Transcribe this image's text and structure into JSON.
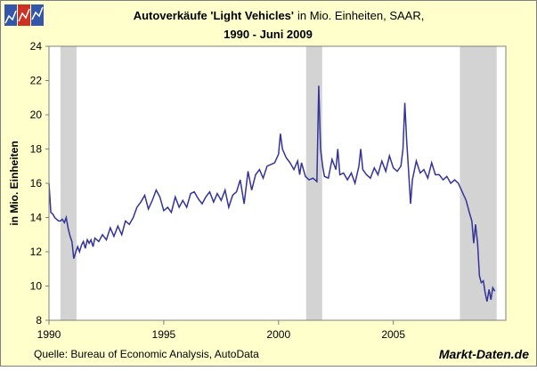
{
  "chart_data": {
    "type": "line",
    "title": "Autoverkäufe 'Light Vehicles'",
    "title_suffix": "in Mio. Einheiten, SAAR,",
    "subtitle": "1990 - Juni 2009",
    "y_label": "in Mio. Einheiten",
    "source": "Quelle: Bureau of Economic Analysis, AutoData",
    "brand": "Markt-Daten.de",
    "xlim": [
      1990,
      2009.9
    ],
    "xticks": [
      1990,
      1995,
      2000,
      2005
    ],
    "ylim": [
      8,
      24
    ],
    "yticks": [
      8,
      10,
      12,
      14,
      16,
      18,
      20,
      22,
      24
    ],
    "grid": false,
    "recessions": [
      [
        1990.5,
        1991.2
      ],
      [
        2001.2,
        2001.9
      ],
      [
        2007.9,
        2009.5
      ]
    ],
    "recession_color": "#d3d3d3",
    "x": [
      1990.0,
      1990.08,
      1990.17,
      1990.25,
      1990.33,
      1990.42,
      1990.5,
      1990.58,
      1990.67,
      1990.75,
      1990.83,
      1990.92,
      1991.0,
      1991.08,
      1991.17,
      1991.25,
      1991.33,
      1991.42,
      1991.5,
      1991.58,
      1991.67,
      1991.75,
      1991.83,
      1991.92,
      1992.0,
      1992.17,
      1992.33,
      1992.5,
      1992.67,
      1992.83,
      1993.0,
      1993.17,
      1993.33,
      1993.5,
      1993.67,
      1993.83,
      1994.0,
      1994.17,
      1994.33,
      1994.5,
      1994.67,
      1994.83,
      1995.0,
      1995.17,
      1995.33,
      1995.5,
      1995.67,
      1995.83,
      1996.0,
      1996.17,
      1996.33,
      1996.5,
      1996.67,
      1996.83,
      1997.0,
      1997.17,
      1997.33,
      1997.5,
      1997.67,
      1997.83,
      1998.0,
      1998.17,
      1998.33,
      1998.5,
      1998.67,
      1998.83,
      1999.0,
      1999.17,
      1999.33,
      1999.5,
      1999.67,
      1999.83,
      2000.0,
      2000.08,
      2000.17,
      2000.33,
      2000.5,
      2000.67,
      2000.83,
      2000.92,
      2001.0,
      2001.17,
      2001.33,
      2001.5,
      2001.67,
      2001.75,
      2001.83,
      2001.92,
      2002.0,
      2002.17,
      2002.33,
      2002.5,
      2002.58,
      2002.67,
      2002.83,
      2003.0,
      2003.17,
      2003.33,
      2003.5,
      2003.58,
      2003.67,
      2003.83,
      2004.0,
      2004.17,
      2004.33,
      2004.5,
      2004.67,
      2004.83,
      2005.0,
      2005.17,
      2005.33,
      2005.42,
      2005.5,
      2005.58,
      2005.67,
      2005.75,
      2005.83,
      2006.0,
      2006.17,
      2006.33,
      2006.5,
      2006.67,
      2006.83,
      2007.0,
      2007.17,
      2007.33,
      2007.5,
      2007.67,
      2007.83,
      2008.0,
      2008.17,
      2008.33,
      2008.42,
      2008.5,
      2008.58,
      2008.67,
      2008.75,
      2008.83,
      2008.92,
      2009.0,
      2009.08,
      2009.17,
      2009.25,
      2009.33,
      2009.42
    ],
    "series": [
      {
        "name": "Light Vehicles",
        "color": "#333399",
        "values": [
          16.0,
          14.3,
          14.2,
          14.0,
          13.9,
          13.8,
          13.8,
          13.9,
          13.7,
          14.0,
          13.4,
          12.9,
          12.6,
          11.6,
          12.0,
          12.3,
          12.0,
          12.4,
          12.6,
          12.2,
          12.7,
          12.5,
          12.7,
          12.3,
          12.8,
          12.6,
          13.0,
          12.7,
          13.4,
          12.9,
          13.5,
          13.0,
          13.8,
          13.6,
          14.0,
          14.6,
          14.9,
          15.3,
          14.5,
          15.0,
          15.6,
          15.2,
          14.4,
          14.6,
          14.3,
          15.2,
          14.6,
          15.0,
          14.6,
          15.4,
          15.5,
          15.1,
          14.8,
          15.2,
          15.5,
          14.9,
          15.4,
          15.0,
          15.6,
          14.6,
          15.3,
          15.5,
          16.2,
          14.8,
          16.7,
          15.6,
          16.5,
          16.8,
          16.3,
          17.0,
          17.1,
          17.2,
          17.7,
          18.9,
          18.0,
          17.5,
          17.2,
          16.8,
          17.3,
          16.5,
          17.2,
          16.4,
          16.2,
          16.3,
          16.1,
          21.7,
          18.0,
          17.0,
          16.4,
          16.3,
          17.4,
          16.8,
          18.0,
          16.5,
          16.6,
          16.2,
          16.6,
          16.0,
          17.0,
          18.0,
          16.8,
          16.5,
          16.3,
          16.9,
          16.5,
          17.3,
          16.7,
          17.6,
          16.9,
          16.7,
          17.0,
          18.0,
          20.7,
          18.5,
          16.6,
          14.8,
          16.2,
          17.3,
          16.6,
          16.8,
          16.3,
          17.2,
          16.5,
          16.5,
          16.2,
          16.4,
          16.0,
          16.2,
          16.0,
          15.5,
          15.0,
          14.2,
          13.8,
          12.5,
          13.6,
          12.5,
          10.6,
          10.2,
          10.3,
          9.6,
          9.1,
          9.8,
          9.2,
          9.9,
          9.7
        ]
      }
    ]
  }
}
